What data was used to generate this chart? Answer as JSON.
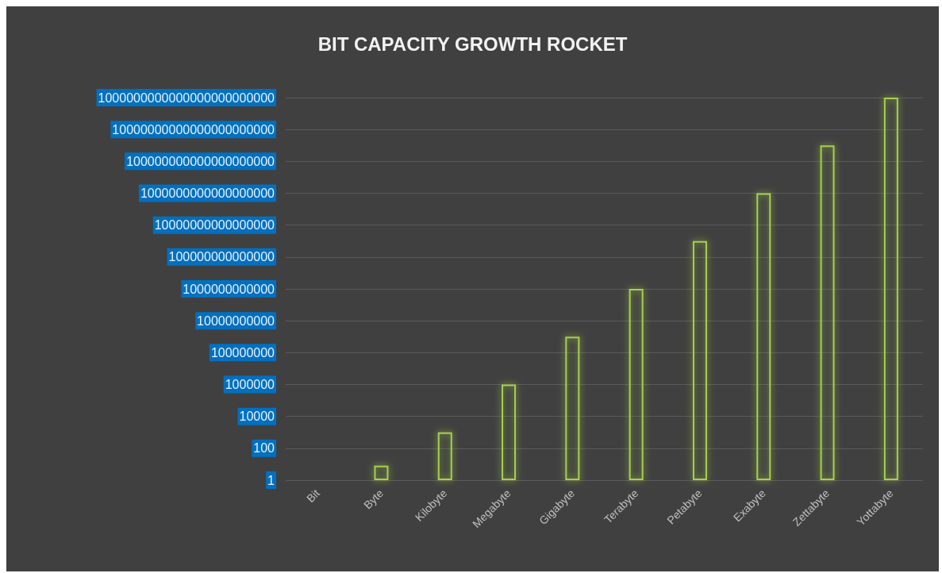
{
  "chart_data": {
    "type": "bar",
    "title": "BIT CAPACITY GROWTH ROCKET",
    "categories": [
      "Bit",
      "Byte",
      "Kilobyte",
      "Megabyte",
      "Gigabyte",
      "Terabyte",
      "Petabyte",
      "Exabyte",
      "Zettabyte",
      "Yottabyte"
    ],
    "series": [
      {
        "color": "#a6d14a",
        "values": [
          null,
          8,
          1000,
          1000000,
          1000000000,
          1000000000000,
          1000000000000000,
          1000000000000000000,
          1e+21,
          1e+24
        ]
      }
    ],
    "log": "y",
    "ylim": [
      1,
      1e+24
    ],
    "yticks": [
      {
        "value": 1,
        "label": "1"
      },
      {
        "value": 100,
        "label": "100"
      },
      {
        "value": 10000,
        "label": "10000"
      },
      {
        "value": 1000000,
        "label": "1000000"
      },
      {
        "value": 100000000,
        "label": "100000000"
      },
      {
        "value": 10000000000,
        "label": "10000000000"
      },
      {
        "value": 1000000000000,
        "label": "1000000000000"
      },
      {
        "value": 100000000000000,
        "label": "100000000000000"
      },
      {
        "value": 10000000000000000,
        "label": "10000000000000000"
      },
      {
        "value": 1000000000000000000,
        "label": "1000000000000000000"
      },
      {
        "value": 1e+20,
        "label": "100000000000000000000"
      },
      {
        "value": 1e+22,
        "label": "10000000000000000000000"
      },
      {
        "value": 1e+24,
        "label": "1000000000000000000000000"
      }
    ],
    "grid": "y"
  }
}
